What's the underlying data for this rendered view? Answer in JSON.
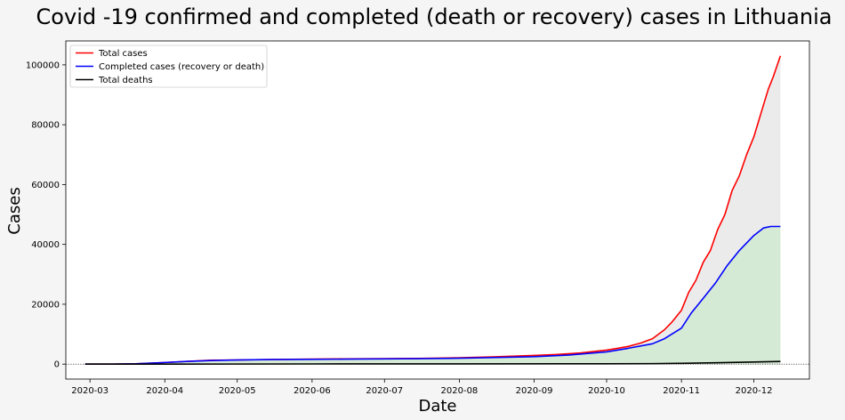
{
  "chart_data": {
    "type": "line",
    "title": "Covid -19 confirmed and completed (death or recovery) cases in Lithuania",
    "xlabel": "Date",
    "ylabel": "Cases",
    "x_range": [
      "2020-02-20",
      "2020-12-24"
    ],
    "ylim": [
      -5000,
      108000
    ],
    "x_ticks": [
      "2020-03-01",
      "2020-04-01",
      "2020-05-01",
      "2020-06-01",
      "2020-07-01",
      "2020-08-01",
      "2020-09-01",
      "2020-10-01",
      "2020-11-01",
      "2020-12-01"
    ],
    "x_tick_labels": [
      "2020-03",
      "2020-04",
      "2020-05",
      "2020-06",
      "2020-07",
      "2020-08",
      "2020-09",
      "2020-10",
      "2020-11",
      "2020-12"
    ],
    "y_ticks": [
      0,
      20000,
      40000,
      60000,
      80000,
      100000
    ],
    "y_tick_labels": [
      "0",
      "20000",
      "40000",
      "60000",
      "80000",
      "100000"
    ],
    "zero_reference_line": true,
    "grid": false,
    "legend_position": "top-left",
    "series": [
      {
        "name": "Total cases",
        "color": "#ff0000",
        "points": [
          [
            "2020-02-28",
            0
          ],
          [
            "2020-03-10",
            10
          ],
          [
            "2020-03-20",
            100
          ],
          [
            "2020-03-31",
            500
          ],
          [
            "2020-04-10",
            900
          ],
          [
            "2020-04-20",
            1300
          ],
          [
            "2020-05-01",
            1400
          ],
          [
            "2020-05-15",
            1550
          ],
          [
            "2020-06-01",
            1650
          ],
          [
            "2020-06-15",
            1750
          ],
          [
            "2020-07-01",
            1830
          ],
          [
            "2020-07-15",
            1900
          ],
          [
            "2020-08-01",
            2100
          ],
          [
            "2020-08-15",
            2400
          ],
          [
            "2020-09-01",
            2900
          ],
          [
            "2020-09-10",
            3200
          ],
          [
            "2020-09-20",
            3700
          ],
          [
            "2020-10-01",
            4700
          ],
          [
            "2020-10-05",
            5200
          ],
          [
            "2020-10-10",
            5900
          ],
          [
            "2020-10-15",
            7000
          ],
          [
            "2020-10-20",
            8500
          ],
          [
            "2020-10-25",
            11500
          ],
          [
            "2020-10-28",
            14000
          ],
          [
            "2020-11-01",
            18000
          ],
          [
            "2020-11-04",
            24000
          ],
          [
            "2020-11-07",
            28000
          ],
          [
            "2020-11-10",
            34000
          ],
          [
            "2020-11-13",
            38000
          ],
          [
            "2020-11-16",
            45000
          ],
          [
            "2020-11-19",
            50000
          ],
          [
            "2020-11-22",
            58000
          ],
          [
            "2020-11-25",
            63000
          ],
          [
            "2020-11-28",
            70000
          ],
          [
            "2020-12-01",
            76000
          ],
          [
            "2020-12-04",
            84000
          ],
          [
            "2020-12-07",
            92000
          ],
          [
            "2020-12-09",
            96000
          ],
          [
            "2020-12-12",
            103000
          ]
        ]
      },
      {
        "name": "Completed cases (recovery or death)",
        "color": "#0000ff",
        "points": [
          [
            "2020-02-28",
            0
          ],
          [
            "2020-03-10",
            10
          ],
          [
            "2020-03-20",
            100
          ],
          [
            "2020-03-31",
            500
          ],
          [
            "2020-04-10",
            900
          ],
          [
            "2020-04-20",
            1200
          ],
          [
            "2020-05-01",
            1350
          ],
          [
            "2020-05-15",
            1500
          ],
          [
            "2020-06-01",
            1600
          ],
          [
            "2020-06-15",
            1650
          ],
          [
            "2020-07-01",
            1750
          ],
          [
            "2020-07-15",
            1800
          ],
          [
            "2020-08-01",
            1950
          ],
          [
            "2020-08-15",
            2200
          ],
          [
            "2020-09-01",
            2500
          ],
          [
            "2020-09-15",
            3000
          ],
          [
            "2020-10-01",
            4100
          ],
          [
            "2020-10-10",
            5300
          ],
          [
            "2020-10-20",
            6800
          ],
          [
            "2020-10-25",
            8500
          ],
          [
            "2020-11-01",
            12000
          ],
          [
            "2020-11-05",
            17000
          ],
          [
            "2020-11-10",
            22000
          ],
          [
            "2020-11-15",
            27000
          ],
          [
            "2020-11-20",
            33000
          ],
          [
            "2020-11-25",
            38000
          ],
          [
            "2020-12-01",
            43000
          ],
          [
            "2020-12-05",
            45500
          ],
          [
            "2020-12-08",
            46000
          ],
          [
            "2020-12-12",
            46000
          ]
        ]
      },
      {
        "name": "Total deaths",
        "color": "#000000",
        "points": [
          [
            "2020-02-28",
            0
          ],
          [
            "2020-04-01",
            10
          ],
          [
            "2020-06-01",
            70
          ],
          [
            "2020-08-01",
            80
          ],
          [
            "2020-10-01",
            100
          ],
          [
            "2020-10-20",
            150
          ],
          [
            "2020-11-01",
            250
          ],
          [
            "2020-11-15",
            450
          ],
          [
            "2020-12-01",
            700
          ],
          [
            "2020-12-12",
            900
          ]
        ]
      }
    ]
  }
}
